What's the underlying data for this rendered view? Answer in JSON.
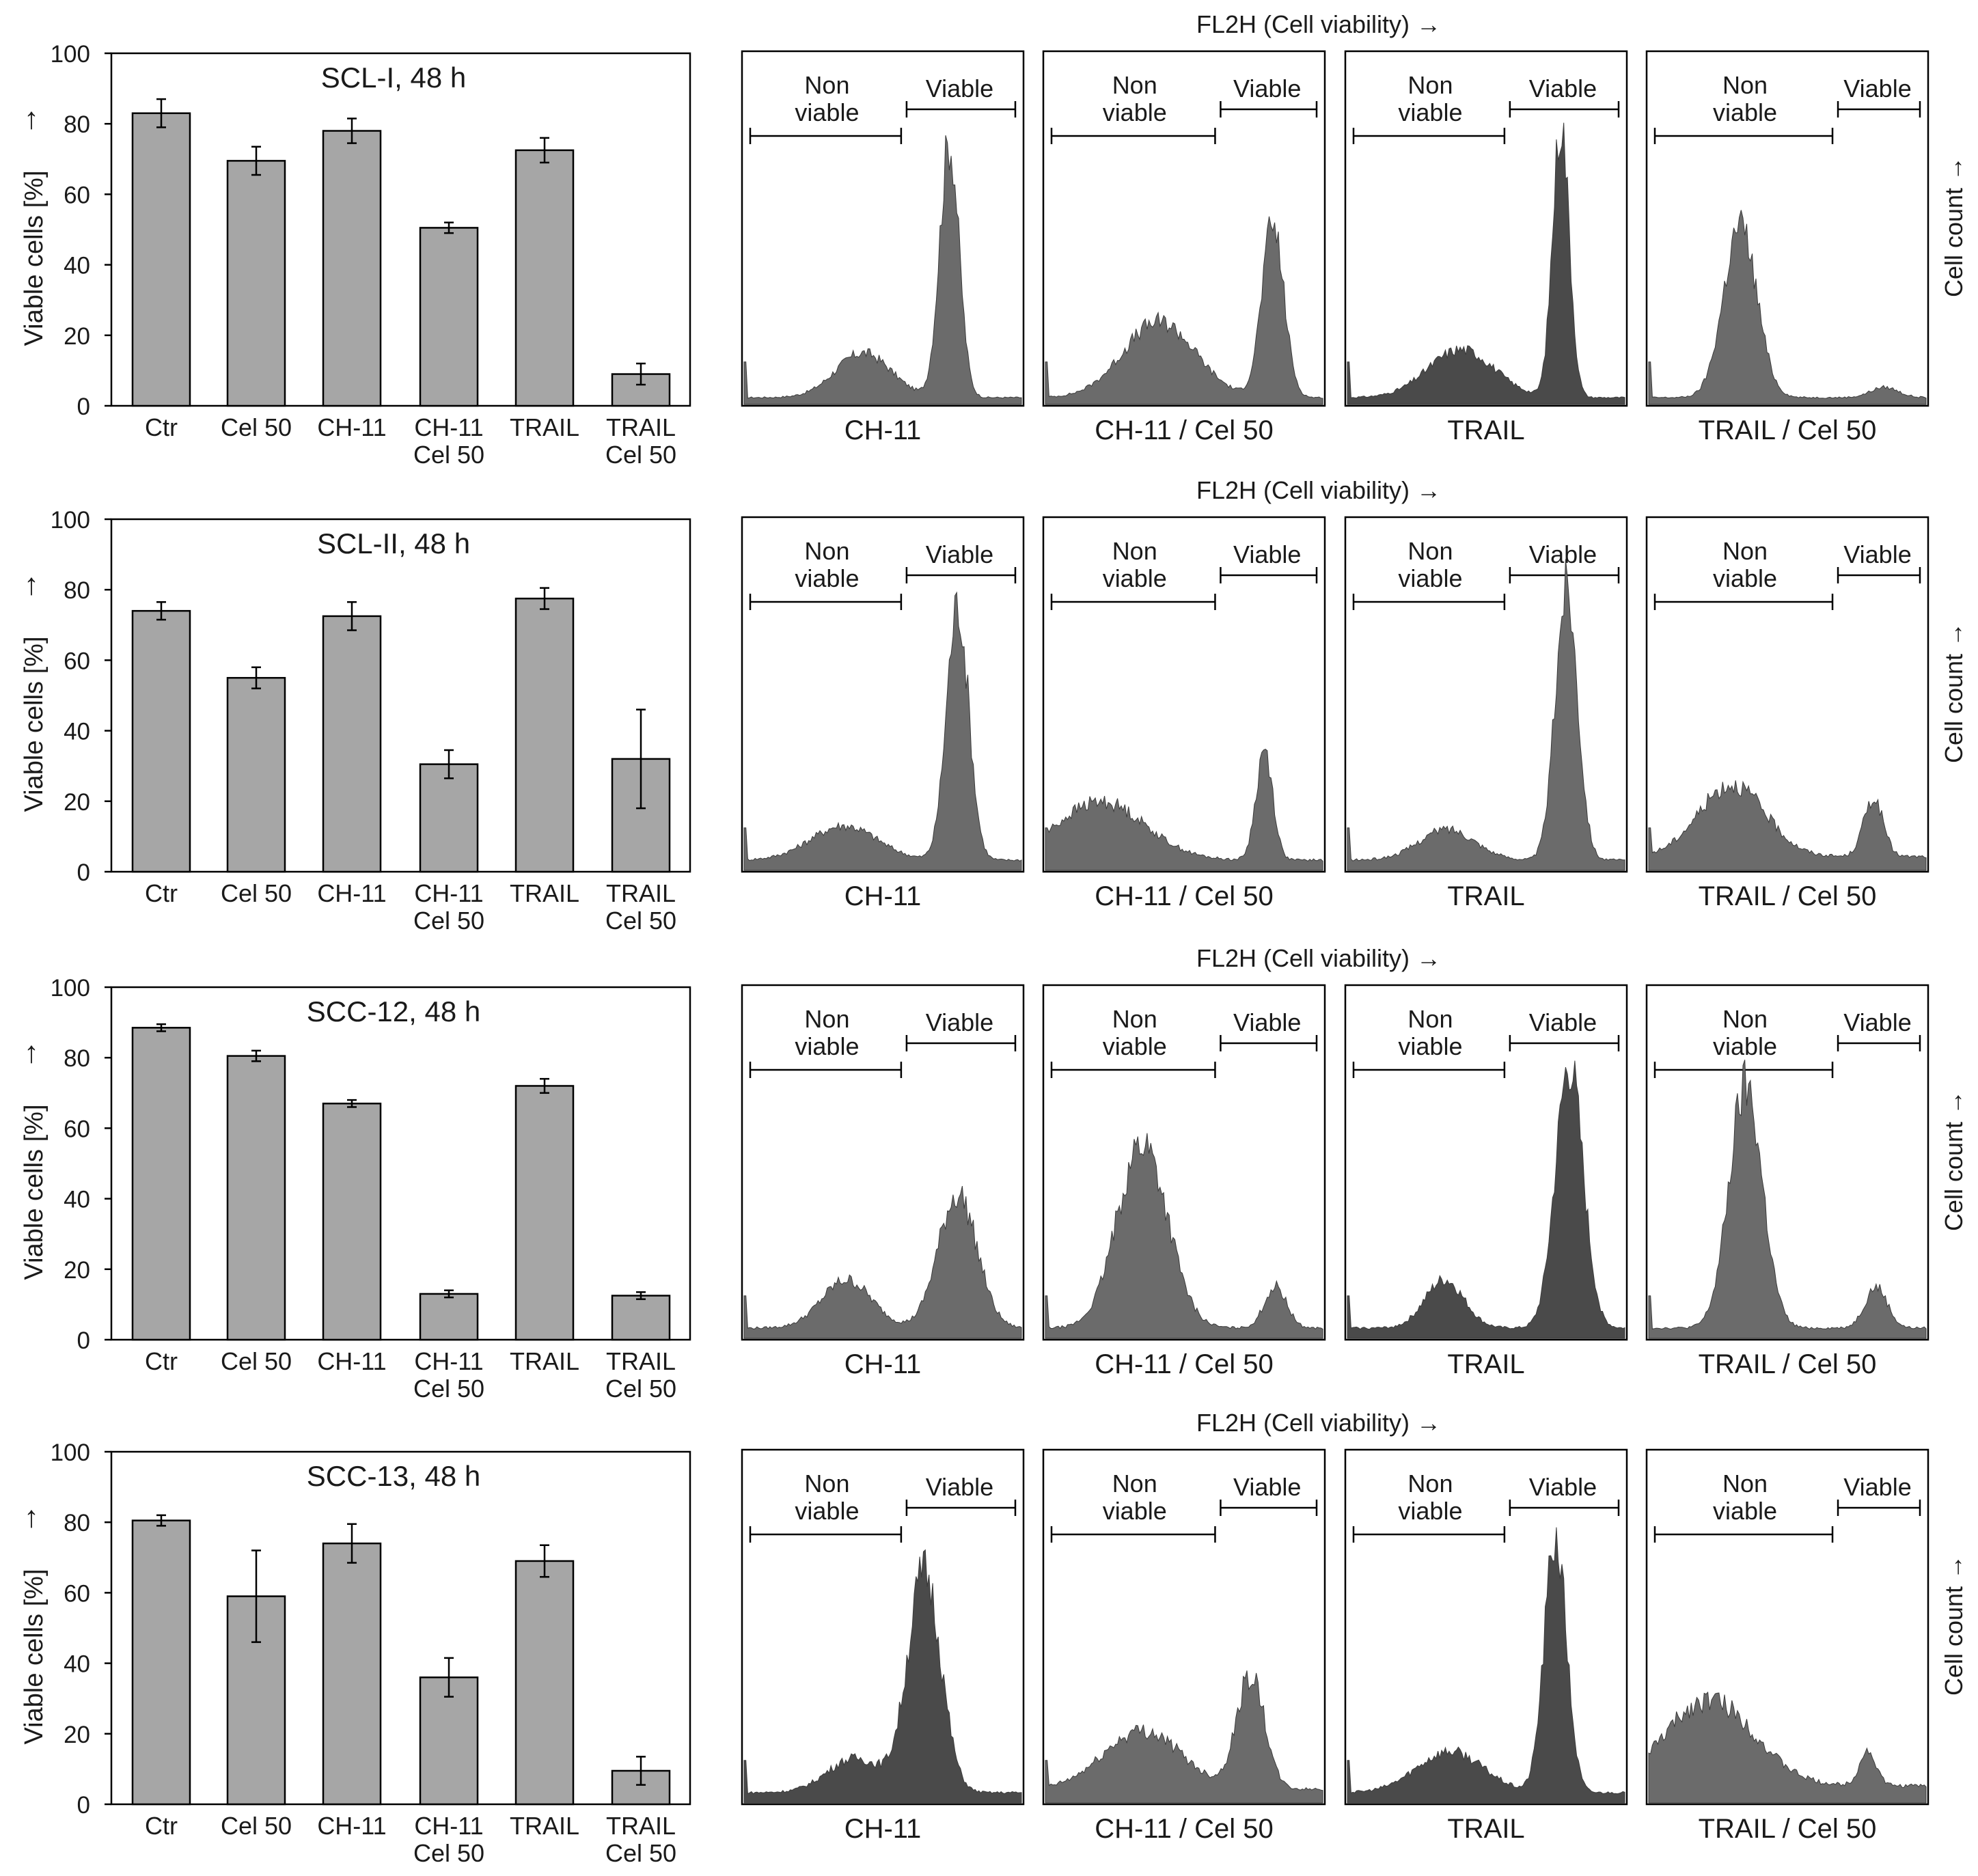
{
  "axis": {
    "y_label": "Viable cells [%]",
    "y_ticks": [
      "0",
      "20",
      "40",
      "60",
      "80",
      "100"
    ],
    "arrow": "↑",
    "fl2h_label": "FL2H (Cell viability) →",
    "cell_count_label": "Cell count →",
    "non_viable_line1": "Non",
    "non_viable_line2": "viable",
    "viable_label": "Viable"
  },
  "colors": {
    "bar_fill": "#a6a6a6",
    "hist_dark": "#4a4a4a",
    "hist_mid": "#6b6b6b",
    "axis": "#000000"
  },
  "chart_data": [
    {
      "type": "bar",
      "title": "SCL-I, 48 h",
      "categories": [
        [
          "Ctr"
        ],
        [
          "Cel 50"
        ],
        [
          "CH-11"
        ],
        [
          "CH-11",
          "Cel 50"
        ],
        [
          "TRAIL"
        ],
        [
          "TRAIL",
          "Cel 50"
        ]
      ],
      "values": [
        83,
        69.5,
        78,
        50.5,
        72.5,
        9
      ],
      "errors": [
        4,
        4,
        3.5,
        1.5,
        3.5,
        3
      ],
      "ylabel": "Viable cells [%]",
      "ylim": [
        0,
        100
      ],
      "histograms": {
        "type": "area",
        "xlabel": "FL2H (Cell viability) →",
        "ylabel": "Cell count →",
        "panels": [
          {
            "label": "CH-11",
            "peaks": [
              [
                0.43,
                0.13,
                0.1,
                0
              ],
              [
                0.74,
                0.74,
                0.035,
                1
              ]
            ],
            "base": 0.02
          },
          {
            "label": "CH-11 / Cel 50",
            "peaks": [
              [
                0.41,
                0.22,
                0.13,
                1
              ],
              [
                0.82,
                0.5,
                0.04,
                1
              ]
            ],
            "base": 0.02
          },
          {
            "label": "TRAIL",
            "peaks": [
              [
                0.41,
                0.14,
                0.12,
                1
              ],
              [
                0.77,
                0.8,
                0.03,
                0
              ]
            ],
            "base": 0.02
          },
          {
            "label": "TRAIL / Cel 50",
            "peaks": [
              [
                0.33,
                0.5,
                0.06,
                1
              ],
              [
                0.85,
                0.03,
                0.05,
                1
              ]
            ],
            "base": 0.02
          }
        ]
      }
    },
    {
      "type": "bar",
      "title": "SCL-II, 48 h",
      "categories": [
        [
          "Ctr"
        ],
        [
          "Cel 50"
        ],
        [
          "CH-11"
        ],
        [
          "CH-11",
          "Cel 50"
        ],
        [
          "TRAIL"
        ],
        [
          "TRAIL",
          "Cel 50"
        ]
      ],
      "values": [
        74,
        55,
        72.5,
        30.5,
        77.5,
        32
      ],
      "errors": [
        2.5,
        3,
        4,
        4,
        3,
        14
      ],
      "ylabel": "Viable cells [%]",
      "ylim": [
        0,
        100
      ],
      "histograms": {
        "type": "area",
        "xlabel": "FL2H (Cell viability) →",
        "ylabel": "Cell count →",
        "panels": [
          {
            "label": "CH-11",
            "peaks": [
              [
                0.36,
                0.1,
                0.12,
                1
              ],
              [
                0.77,
                0.74,
                0.04,
                1
              ]
            ],
            "base": 0.03
          },
          {
            "label": "CH-11 / Cel 50",
            "peaks": [
              [
                0.2,
                0.17,
                0.16,
                0
              ],
              [
                0.79,
                0.32,
                0.03,
                1
              ]
            ],
            "base": 0.03
          },
          {
            "label": "TRAIL",
            "peaks": [
              [
                0.36,
                0.09,
                0.1,
                1
              ],
              [
                0.79,
                0.8,
                0.04,
                1
              ]
            ],
            "base": 0.03
          },
          {
            "label": "TRAIL / Cel 50",
            "peaks": [
              [
                0.3,
                0.21,
                0.12,
                1
              ],
              [
                0.81,
                0.17,
                0.035,
                1
              ]
            ],
            "base": 0.04
          }
        ]
      }
    },
    {
      "type": "bar",
      "title": "SCC-12, 48 h",
      "categories": [
        [
          "Ctr"
        ],
        [
          "Cel 50"
        ],
        [
          "CH-11"
        ],
        [
          "CH-11",
          "Cel 50"
        ],
        [
          "TRAIL"
        ],
        [
          "TRAIL",
          "Cel 50"
        ]
      ],
      "values": [
        88.5,
        80.5,
        67,
        13,
        72,
        12.5
      ],
      "errors": [
        1,
        1.5,
        1,
        1,
        2,
        1
      ],
      "ylabel": "Viable cells [%]",
      "ylim": [
        0,
        100
      ],
      "histograms": {
        "type": "area",
        "xlabel": "FL2H (Cell viability) →",
        "ylabel": "Cell count →",
        "panels": [
          {
            "label": "CH-11",
            "peaks": [
              [
                0.37,
                0.14,
                0.09,
                1
              ],
              [
                0.77,
                0.39,
                0.07,
                1
              ]
            ],
            "base": 0.03
          },
          {
            "label": "CH-11 / Cel 50",
            "peaks": [
              [
                0.35,
                0.54,
                0.09,
                1
              ],
              [
                0.83,
                0.12,
                0.04,
                1
              ]
            ],
            "base": 0.03
          },
          {
            "label": "TRAIL",
            "peaks": [
              [
                0.35,
                0.14,
                0.07,
                1
              ],
              [
                0.8,
                0.76,
                0.05,
                0
              ]
            ],
            "base": 0.03
          },
          {
            "label": "TRAIL / Cel 50",
            "peaks": [
              [
                0.35,
                0.7,
                0.06,
                1
              ],
              [
                0.82,
                0.12,
                0.04,
                1
              ]
            ],
            "base": 0.03
          }
        ]
      }
    },
    {
      "type": "bar",
      "title": "SCC-13, 48 h",
      "categories": [
        [
          "Ctr"
        ],
        [
          "Cel 50"
        ],
        [
          "CH-11"
        ],
        [
          "CH-11",
          "Cel 50"
        ],
        [
          "TRAIL"
        ],
        [
          "TRAIL",
          "Cel 50"
        ]
      ],
      "values": [
        80.5,
        59,
        74,
        36,
        69,
        9.5
      ],
      "errors": [
        1.5,
        13,
        5.5,
        5.5,
        4.5,
        4
      ],
      "ylabel": "Viable cells [%]",
      "ylim": [
        0,
        100
      ],
      "histograms": {
        "type": "area",
        "xlabel": "FL2H (Cell viability) →",
        "ylabel": "Cell count →",
        "panels": [
          {
            "label": "CH-11",
            "peaks": [
              [
                0.4,
                0.1,
                0.1,
                0
              ],
              [
                0.65,
                0.64,
                0.06,
                0
              ]
            ],
            "base": 0.03
          },
          {
            "label": "CH-11 / Cel 50",
            "peaks": [
              [
                0.35,
                0.17,
                0.14,
                1
              ],
              [
                0.74,
                0.33,
                0.05,
                1
              ]
            ],
            "base": 0.04
          },
          {
            "label": "TRAIL",
            "peaks": [
              [
                0.37,
                0.12,
                0.12,
                1
              ],
              [
                0.75,
                0.74,
                0.04,
                0
              ]
            ],
            "base": 0.03
          },
          {
            "label": "TRAIL / Cel 50",
            "peaks": [
              [
                0.22,
                0.25,
                0.16,
                1
              ],
              [
                0.79,
                0.1,
                0.03,
                1
              ]
            ],
            "base": 0.05
          }
        ]
      }
    }
  ]
}
